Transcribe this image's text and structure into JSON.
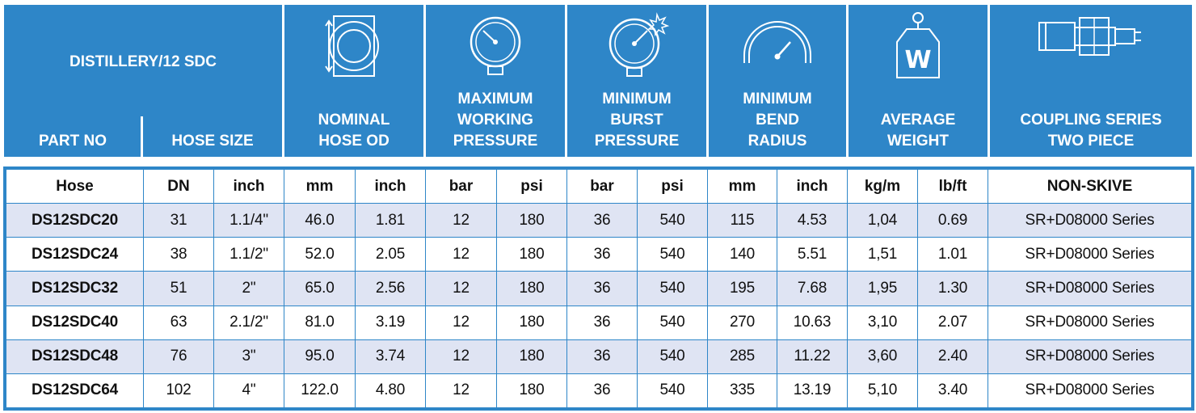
{
  "header": {
    "part_no": "PART NO",
    "product": "DISTILLERY/12 SDC",
    "hose_size": "HOSE SIZE",
    "nominal_od": [
      "NOMINAL",
      "HOSE OD"
    ],
    "max_pressure": [
      "MAXIMUM",
      "WORKING",
      "PRESSURE"
    ],
    "min_burst": [
      "MINIMUM",
      "BURST",
      "PRESSURE"
    ],
    "min_bend": [
      "MINIMUM",
      "BEND",
      "RADIUS"
    ],
    "avg_weight": [
      "AVERAGE",
      "WEIGHT"
    ],
    "coupling": [
      "COUPLING SERIES",
      "TWO PIECE"
    ],
    "weight_icon_letter": "W"
  },
  "icons": [
    "hose-od-icon",
    "pressure-gauge-icon",
    "burst-gauge-icon",
    "bend-radius-icon",
    "weight-icon",
    "coupling-icon"
  ],
  "colors": {
    "header_bg": "#2e86c8",
    "alt_row": "#dfe4f3",
    "border": "#2e86c8"
  },
  "units": [
    "Hose",
    "DN",
    "inch",
    "mm",
    "inch",
    "bar",
    "psi",
    "bar",
    "psi",
    "mm",
    "inch",
    "kg/m",
    "lb/ft",
    "NON-SKIVE"
  ],
  "rows": [
    [
      "DS12SDC20",
      "31",
      "1.1/4\"",
      "46.0",
      "1.81",
      "12",
      "180",
      "36",
      "540",
      "115",
      "4.53",
      "1,04",
      "0.69",
      "SR+D08000 Series"
    ],
    [
      "DS12SDC24",
      "38",
      "1.1/2\"",
      "52.0",
      "2.05",
      "12",
      "180",
      "36",
      "540",
      "140",
      "5.51",
      "1,51",
      "1.01",
      "SR+D08000 Series"
    ],
    [
      "DS12SDC32",
      "51",
      "2\"",
      "65.0",
      "2.56",
      "12",
      "180",
      "36",
      "540",
      "195",
      "7.68",
      "1,95",
      "1.30",
      "SR+D08000 Series"
    ],
    [
      "DS12SDC40",
      "63",
      "2.1/2\"",
      "81.0",
      "3.19",
      "12",
      "180",
      "36",
      "540",
      "270",
      "10.63",
      "3,10",
      "2.07",
      "SR+D08000 Series"
    ],
    [
      "DS12SDC48",
      "76",
      "3\"",
      "95.0",
      "3.74",
      "12",
      "180",
      "36",
      "540",
      "285",
      "11.22",
      "3,60",
      "2.40",
      "SR+D08000 Series"
    ],
    [
      "DS12SDC64",
      "102",
      "4\"",
      "122.0",
      "4.80",
      "12",
      "180",
      "36",
      "540",
      "335",
      "13.19",
      "5,10",
      "3.40",
      "SR+D08000 Series"
    ]
  ]
}
